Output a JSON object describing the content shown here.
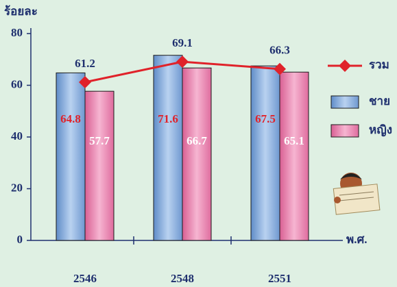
{
  "chart_data": {
    "type": "bar",
    "y_label": "ร้อยละ",
    "x_label": "พ.ศ.",
    "categories": [
      "2546",
      "2548",
      "2551"
    ],
    "series": [
      {
        "name": "ชาย",
        "color": "#7ea6d9",
        "values": [
          64.8,
          71.6,
          67.5
        ],
        "label_color": "#e0222a"
      },
      {
        "name": "หญิง",
        "color": "#e87aaa",
        "values": [
          57.7,
          66.7,
          65.1
        ],
        "label_color": "#ffffff"
      },
      {
        "name": "รวม",
        "type": "line",
        "color": "#e0222a",
        "values": [
          61.2,
          69.1,
          66.3
        ],
        "label_color": "#1e2f6e"
      }
    ],
    "ylim": [
      0,
      80
    ],
    "yticks": [
      0,
      20,
      40,
      60,
      80
    ]
  }
}
